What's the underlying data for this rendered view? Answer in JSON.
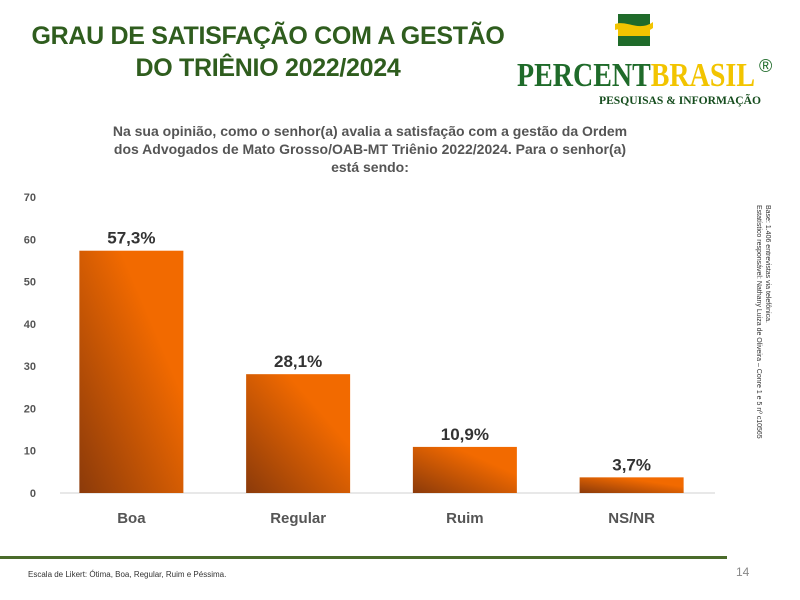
{
  "header": {
    "title_line1": "GRAU DE SATISFAÇÃO COM A GESTÃO",
    "title_line2": "DO TRIÊNIO 2022/2024"
  },
  "logo": {
    "brand_part1": "PERCENT",
    "brand_part2": "BRASIL",
    "registered_mark": "®",
    "tagline": "PESQUISAS & INFORMAÇÃO",
    "colors": {
      "green": "#1f6b2a",
      "yellow": "#f2c400",
      "dark_green": "#164d1e"
    }
  },
  "question": {
    "line1": "Na sua opinião, como o senhor(a) avalia a satisfação com a gestão da Ordem",
    "line2": "dos Advogados de Mato Grosso/OAB-MT Triênio 2022/2024. Para o senhor(a)",
    "line3": "está sendo:"
  },
  "chart_data": {
    "type": "bar",
    "categories": [
      "Boa",
      "Regular",
      "Ruim",
      "NS/NR"
    ],
    "values": [
      57.3,
      28.1,
      10.9,
      3.7
    ],
    "data_labels": [
      "57,3%",
      "28,1%",
      "10,9%",
      "3,7%"
    ],
    "ylim": [
      0,
      70
    ],
    "yticks": [
      0,
      10,
      20,
      30,
      40,
      50,
      60,
      70
    ],
    "grid": false,
    "bar_gradient": [
      "#8b3a0a",
      "#f26a00"
    ]
  },
  "side_note": {
    "line1": "Base: 1.406 entrevistas via telefônica.",
    "line2": "Estatístico responsável: Nathany Luiza de Oliveira – Conre 1 e 5 nº c10565"
  },
  "footer": {
    "scale_note": "Escala de Likert: Ótima, Boa, Regular, Ruim e Péssima.",
    "page_number": "14"
  }
}
